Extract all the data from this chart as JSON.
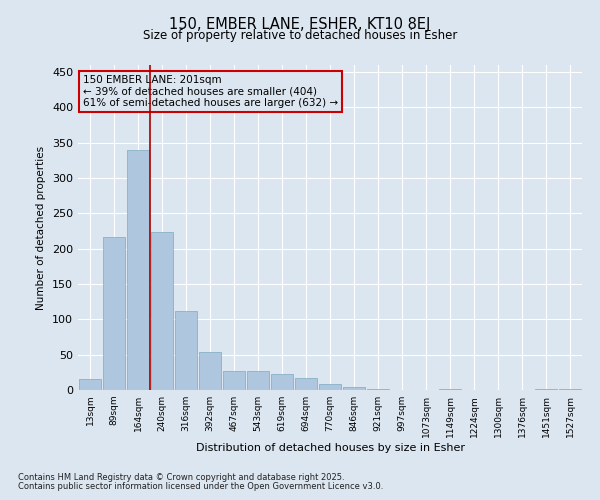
{
  "title": "150, EMBER LANE, ESHER, KT10 8EJ",
  "subtitle": "Size of property relative to detached houses in Esher",
  "xlabel": "Distribution of detached houses by size in Esher",
  "ylabel": "Number of detached properties",
  "categories": [
    "13sqm",
    "89sqm",
    "164sqm",
    "240sqm",
    "316sqm",
    "392sqm",
    "467sqm",
    "543sqm",
    "619sqm",
    "694sqm",
    "770sqm",
    "846sqm",
    "921sqm",
    "997sqm",
    "1073sqm",
    "1149sqm",
    "1224sqm",
    "1300sqm",
    "1376sqm",
    "1451sqm",
    "1527sqm"
  ],
  "values": [
    15,
    217,
    340,
    224,
    112,
    54,
    27,
    27,
    22,
    17,
    8,
    4,
    2,
    0,
    0,
    1,
    0,
    0,
    0,
    2,
    1
  ],
  "bar_color": "#aec6de",
  "bar_edge_color": "#7faabf",
  "vline_color": "#aa0000",
  "annotation_line1": "150 EMBER LANE: 201sqm",
  "annotation_line2": "← 39% of detached houses are smaller (404)",
  "annotation_line3": "61% of semi-detached houses are larger (632) →",
  "annotation_box_edgecolor": "#cc0000",
  "background_color": "#dce6f0",
  "grid_color": "#ffffff",
  "ylim": [
    0,
    460
  ],
  "yticks": [
    0,
    50,
    100,
    150,
    200,
    250,
    300,
    350,
    400,
    450
  ],
  "footnote1": "Contains HM Land Registry data © Crown copyright and database right 2025.",
  "footnote2": "Contains public sector information licensed under the Open Government Licence v3.0."
}
